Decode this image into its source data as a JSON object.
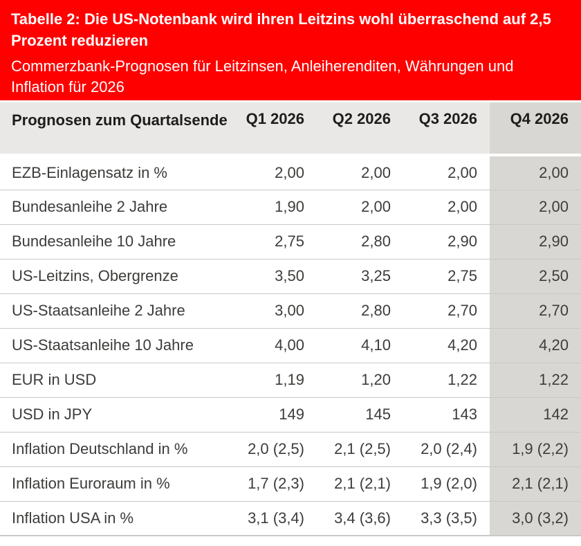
{
  "chart_data": {
    "type": "table",
    "title": "Tabelle 2: Die US-Notenbank wird ihren Leitzins wohl überraschend auf 2,5 Prozent reduzieren",
    "subtitle": "Commerzbank-Prognosen für Leitzinsen, Anleiherenditen, Währungen und Inflation für 2026",
    "corner_header": "Prognosen zum Quartalsende",
    "columns": [
      "Q1 2026",
      "Q2 2026",
      "Q3 2026",
      "Q4 2026"
    ],
    "highlighted_column": "Q4 2026",
    "rows": [
      {
        "label": "EZB-Einlagensatz in %",
        "values": [
          "2,00",
          "2,00",
          "2,00",
          "2,00"
        ]
      },
      {
        "label": "Bundesanleihe 2 Jahre",
        "values": [
          "1,90",
          "2,00",
          "2,00",
          "2,00"
        ]
      },
      {
        "label": "Bundesanleihe 10 Jahre",
        "values": [
          "2,75",
          "2,80",
          "2,90",
          "2,90"
        ]
      },
      {
        "label": "US-Leitzins, Obergrenze",
        "values": [
          "3,50",
          "3,25",
          "2,75",
          "2,50"
        ]
      },
      {
        "label": "US-Staatsanleihe 2 Jahre",
        "values": [
          "3,00",
          "2,80",
          "2,70",
          "2,70"
        ]
      },
      {
        "label": "US-Staatsanleihe 10 Jahre",
        "values": [
          "4,00",
          "4,10",
          "4,20",
          "4,20"
        ]
      },
      {
        "label": "EUR in USD",
        "values": [
          "1,19",
          "1,20",
          "1,22",
          "1,22"
        ]
      },
      {
        "label": "USD in JPY",
        "values": [
          "149",
          "145",
          "143",
          "142"
        ]
      },
      {
        "label": "Inflation Deutschland in %",
        "values": [
          "2,0 (2,5)",
          "2,1 (2,5)",
          "2,0 (2,4)",
          "1,9 (2,2)"
        ]
      },
      {
        "label": "Inflation Euroraum in %",
        "values": [
          "1,7 (2,3)",
          "2,1 (2,1)",
          "1,9 (2,0)",
          "2,1 (2,1)"
        ]
      },
      {
        "label": "Inflation USA in %",
        "values": [
          "3,1 (3,4)",
          "3,4 (3,6)",
          "3,3 (3,5)",
          "3,0 (3,2)"
        ]
      }
    ]
  },
  "colors": {
    "banner_red": "#fe0000",
    "banner_text": "#ffffff",
    "header_bg": "#e9e8e6",
    "highlight_bg": "#d8d7d3",
    "separator": "#c9c8c6",
    "header_text": "#1d1d1b",
    "body_text": "#3c3c3a"
  }
}
